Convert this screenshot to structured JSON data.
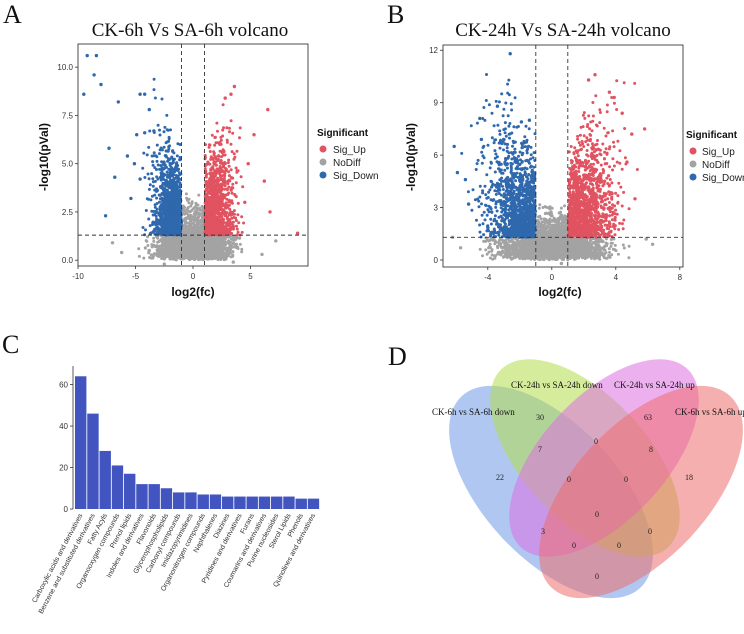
{
  "panel_letters": {
    "a": "A",
    "b": "B",
    "c": "C",
    "d": "D"
  },
  "colors": {
    "sig_up": "#e15360",
    "no_diff": "#a3a3a3",
    "sig_down": "#2f68ad",
    "bar": "#4154c0",
    "venn": [
      "#6f9be6",
      "#b5dd4c",
      "#df70e2",
      "#ef6e6e"
    ]
  },
  "chart_data": [
    {
      "id": "A",
      "type": "scatter",
      "title": "CK-6h Vs SA-6h volcano",
      "xlabel": "log2(fc)",
      "ylabel": "-log10(pVal)",
      "xlim": [
        -10,
        10
      ],
      "ylim": [
        -0.3,
        11.2
      ],
      "xticks": [
        -10,
        -5,
        0,
        5
      ],
      "yticks": [
        0.0,
        2.5,
        5.0,
        7.5,
        10.0
      ],
      "ytick_labels": [
        "0.0",
        "2.5",
        "5.0",
        "7.5",
        "10.0"
      ],
      "thresholds": {
        "fc": [
          -1,
          1
        ],
        "pval": 1.3
      },
      "legend": {
        "title": "Significant",
        "entries": [
          "Sig_Up",
          "NoDiff",
          "Sig_Down"
        ],
        "placement": "right"
      },
      "series": [
        {
          "name": "Sig_Down",
          "points": [
            [
              -9.2,
              10.6
            ],
            [
              -8.4,
              10.6
            ],
            [
              -8.6,
              9.6
            ],
            [
              -8.0,
              9.1
            ],
            [
              -9.5,
              8.6
            ],
            [
              -6.5,
              8.2
            ],
            [
              -4.6,
              8.6
            ],
            [
              -4.2,
              8.6
            ],
            [
              -3.8,
              7.8
            ],
            [
              -7.3,
              5.8
            ],
            [
              -6.8,
              4.3
            ],
            [
              -5.7,
              5.4
            ],
            [
              -5.1,
              5.0
            ],
            [
              -4.9,
              6.5
            ],
            [
              -4.2,
              6.6
            ],
            [
              -3.4,
              6.7
            ],
            [
              -7.6,
              2.3
            ],
            [
              -5.4,
              3.2
            ],
            [
              -4.6,
              4.2
            ]
          ]
        },
        {
          "name": "Sig_Up",
          "points": [
            [
              6.5,
              7.8
            ],
            [
              3.6,
              9.0
            ],
            [
              3.3,
              8.6
            ],
            [
              2.8,
              8.4
            ],
            [
              5.3,
              6.5
            ],
            [
              4.8,
              5.0
            ],
            [
              6.7,
              2.5
            ],
            [
              4.5,
              3.0
            ],
            [
              9.1,
              1.4
            ],
            [
              6.2,
              4.1
            ]
          ]
        },
        {
          "name": "NoDiff",
          "points": [
            [
              -7.0,
              0.9
            ],
            [
              -6.2,
              0.4
            ],
            [
              6.0,
              0.3
            ],
            [
              7.2,
              1.0
            ],
            [
              3.5,
              -0.1
            ],
            [
              -2.5,
              -0.2
            ]
          ]
        }
      ]
    },
    {
      "id": "B",
      "type": "scatter",
      "title": "CK-24h Vs SA-24h volcano",
      "xlabel": "log2(fc)",
      "ylabel": "-log10(pVal)",
      "xlim": [
        -6.8,
        8.2
      ],
      "ylim": [
        -0.4,
        12.3
      ],
      "xticks": [
        -4,
        0,
        4,
        8
      ],
      "yticks": [
        0,
        3,
        6,
        9,
        12
      ],
      "ytick_labels": [
        "0",
        "3",
        "6",
        "9",
        "12"
      ],
      "thresholds": {
        "fc": [
          -1,
          1
        ],
        "pval": 1.3
      },
      "legend": {
        "title": "Significant",
        "entries": [
          "Sig_Up",
          "NoDiff",
          "Sig_Down"
        ],
        "placement": "right"
      },
      "series": [
        {
          "name": "Sig_Down",
          "points": [
            [
              -2.6,
              11.8
            ],
            [
              -3.4,
              8.8
            ],
            [
              -1.4,
              8.0
            ],
            [
              -1.9,
              7.9
            ],
            [
              -5.9,
              5.0
            ],
            [
              -5.4,
              4.6
            ],
            [
              -6.1,
              6.5
            ],
            [
              -5.2,
              3.2
            ],
            [
              -4.5,
              8.1
            ],
            [
              -4.4,
              6.9
            ]
          ]
        },
        {
          "name": "Sig_Up",
          "points": [
            [
              2.7,
              10.6
            ],
            [
              2.3,
              10.3
            ],
            [
              3.6,
              9.6
            ],
            [
              3.9,
              9.3
            ],
            [
              4.4,
              8.4
            ],
            [
              5.0,
              7.2
            ],
            [
              5.8,
              7.5
            ],
            [
              5.2,
              3.5
            ],
            [
              4.7,
              5.6
            ],
            [
              3.3,
              4.5
            ]
          ]
        },
        {
          "name": "NoDiff",
          "points": [
            [
              -6.2,
              1.3
            ],
            [
              -5.7,
              0.7
            ],
            [
              5.9,
              1.2
            ],
            [
              6.3,
              0.9
            ],
            [
              -0.3,
              0.3
            ],
            [
              0.6,
              -0.2
            ]
          ]
        }
      ]
    },
    {
      "id": "C",
      "type": "bar",
      "ylim": [
        0,
        68
      ],
      "yticks": [
        0,
        20,
        40,
        60
      ],
      "categories": [
        "Carboxylic acids and derivatives",
        "Benzene and substituted derivatives",
        "Fatty Acyls",
        "Organooxygen compounds",
        "Prenol lipids",
        "Indoles and derivatives",
        "Flavonoids",
        "Glycerophospholipids",
        "Carbonyl compounds",
        "Imidazopyrimidines",
        "Organonitrogen compounds",
        "Naphthalenes",
        "Diazines",
        "Pyridines and derivatives",
        "Furans",
        "Coumarins and derivatives",
        "Purine nucleosides",
        "Sterol Lipids",
        "Phenols",
        "Quinolines and derivatives"
      ],
      "values": [
        64,
        46,
        28,
        21,
        17,
        12,
        12,
        10,
        8,
        8,
        7,
        7,
        6,
        6,
        6,
        6,
        6,
        6,
        5,
        5
      ]
    },
    {
      "id": "D",
      "type": "venn",
      "sets": [
        "CK-6h vs SA-6h down",
        "CK-24h vs SA-24h down",
        "CK-24h vs SA-24h up",
        "CK-6h vs SA-6h up"
      ],
      "regions": {
        "A": 22,
        "B": 30,
        "C": 63,
        "D": 18,
        "AB": 7,
        "BC": 0,
        "CD": 8,
        "AD": 0,
        "ABC": 0,
        "BCD": 0,
        "ABD": 0,
        "ACD": 0,
        "ABCD": 0,
        "AC": 3,
        "BD": 0
      }
    }
  ]
}
